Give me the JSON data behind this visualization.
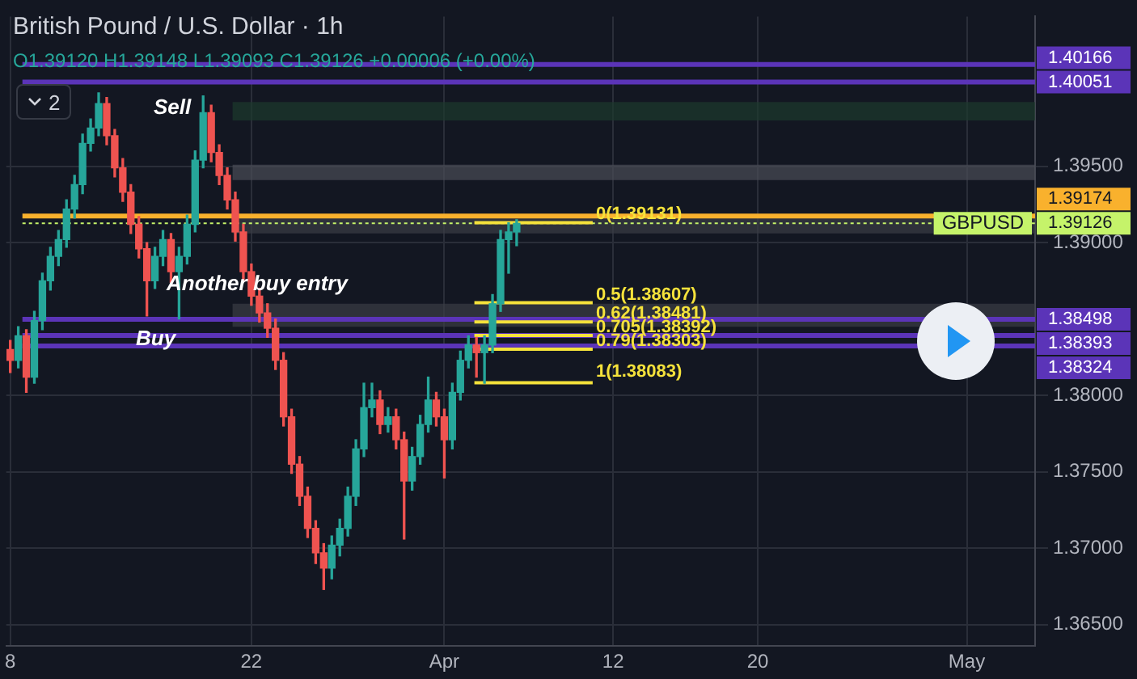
{
  "chart_data": {
    "type": "candlestick",
    "title": "British Pound / U.S. Dollar · 1h",
    "subtitle": "O1.39120 H1.39148 L1.39093 C1.39126 +0.00006 (+0.00%)",
    "categories": [
      "8",
      null,
      null,
      null,
      null,
      null,
      null,
      null,
      null,
      null,
      null,
      null,
      null,
      null,
      null,
      null,
      null,
      null,
      null,
      null,
      null,
      null,
      null,
      null,
      null,
      null,
      null,
      null,
      null,
      null,
      "22",
      null,
      null,
      null,
      null,
      null,
      null,
      null,
      null,
      null,
      null,
      null,
      null,
      null,
      null,
      null,
      null,
      null,
      null,
      null,
      null,
      null,
      null,
      null,
      "Apr",
      null,
      null,
      null,
      null,
      null,
      null,
      null,
      null,
      null,
      null,
      null,
      null,
      null,
      null,
      null,
      null,
      null,
      null,
      null,
      null,
      "12",
      null,
      null,
      null,
      null,
      null,
      null,
      null,
      null,
      null,
      null,
      null,
      null,
      null,
      null,
      null,
      null,
      null,
      "20",
      null,
      null,
      null,
      null,
      null,
      null,
      null,
      null,
      null,
      null,
      null,
      null,
      null,
      null,
      null,
      null,
      null,
      null,
      null,
      null,
      null,
      null,
      null,
      null,
      null,
      "May",
      null,
      null,
      null,
      null,
      null,
      null,
      null,
      null
    ],
    "ohlc": [
      [
        1.383,
        1.3836,
        1.3815,
        1.3823
      ],
      [
        1.3823,
        1.3845,
        1.3818,
        1.3839
      ],
      [
        1.3839,
        1.3843,
        1.3802,
        1.3812
      ],
      [
        1.3812,
        1.3855,
        1.3808,
        1.3849
      ],
      [
        1.3849,
        1.388,
        1.3843,
        1.3875
      ],
      [
        1.3875,
        1.3897,
        1.3869,
        1.3891
      ],
      [
        1.3891,
        1.3908,
        1.3885,
        1.3902
      ],
      [
        1.3902,
        1.3928,
        1.3897,
        1.3922
      ],
      [
        1.3922,
        1.3944,
        1.3916,
        1.3938
      ],
      [
        1.3938,
        1.3971,
        1.3932,
        1.3965
      ],
      [
        1.3965,
        1.3981,
        1.396,
        1.3975
      ],
      [
        1.3975,
        1.3998,
        1.397,
        1.3991
      ],
      [
        1.3991,
        1.3995,
        1.3964,
        1.397
      ],
      [
        1.397,
        1.3974,
        1.3943,
        1.3949
      ],
      [
        1.3949,
        1.3955,
        1.3927,
        1.3933
      ],
      [
        1.3933,
        1.3938,
        1.3906,
        1.3912
      ],
      [
        1.3912,
        1.3917,
        1.389,
        1.3896
      ],
      [
        1.3896,
        1.39,
        1.3852,
        1.3875
      ],
      [
        1.3875,
        1.3897,
        1.387,
        1.3891
      ],
      [
        1.3891,
        1.3908,
        1.3885,
        1.3902
      ],
      [
        1.3902,
        1.3906,
        1.3874,
        1.3881
      ],
      [
        1.3881,
        1.3897,
        1.385,
        1.3891
      ],
      [
        1.3891,
        1.3918,
        1.3886,
        1.3912
      ],
      [
        1.3912,
        1.396,
        1.3907,
        1.3954
      ],
      [
        1.3954,
        1.3996,
        1.3949,
        1.3985
      ],
      [
        1.3985,
        1.399,
        1.3953,
        1.3959
      ],
      [
        1.3959,
        1.3964,
        1.3938,
        1.3944
      ],
      [
        1.3944,
        1.3949,
        1.3922,
        1.3928
      ],
      [
        1.3928,
        1.3933,
        1.3901,
        1.3907
      ],
      [
        1.3907,
        1.3912,
        1.3875,
        1.3881
      ],
      [
        1.3881,
        1.3886,
        1.3859,
        1.3865
      ],
      [
        1.3865,
        1.387,
        1.3848,
        1.3854
      ],
      [
        1.3854,
        1.386,
        1.3838,
        1.3844
      ],
      [
        1.3844,
        1.385,
        1.3817,
        1.3823
      ],
      [
        1.3823,
        1.3828,
        1.378,
        1.3786
      ],
      [
        1.3786,
        1.3791,
        1.3749,
        1.3755
      ],
      [
        1.3755,
        1.376,
        1.3728,
        1.3734
      ],
      [
        1.3734,
        1.374,
        1.3707,
        1.3713
      ],
      [
        1.3713,
        1.3718,
        1.369,
        1.3697
      ],
      [
        1.3697,
        1.3703,
        1.3673,
        1.3687
      ],
      [
        1.3687,
        1.3708,
        1.368,
        1.3702
      ],
      [
        1.3702,
        1.3719,
        1.3695,
        1.3713
      ],
      [
        1.3713,
        1.374,
        1.3708,
        1.3734
      ],
      [
        1.3734,
        1.3771,
        1.3728,
        1.3765
      ],
      [
        1.3765,
        1.3808,
        1.376,
        1.3792
      ],
      [
        1.3792,
        1.3808,
        1.3786,
        1.3797
      ],
      [
        1.3797,
        1.3803,
        1.3775,
        1.3781
      ],
      [
        1.3781,
        1.3792,
        1.3776,
        1.3786
      ],
      [
        1.3786,
        1.3791,
        1.3765,
        1.3771
      ],
      [
        1.3771,
        1.3776,
        1.3706,
        1.3744
      ],
      [
        1.3744,
        1.3766,
        1.3738,
        1.376
      ],
      [
        1.376,
        1.3787,
        1.3755,
        1.3781
      ],
      [
        1.3781,
        1.3812,
        1.3776,
        1.3797
      ],
      [
        1.3797,
        1.3802,
        1.378,
        1.3786
      ],
      [
        1.3786,
        1.3791,
        1.3746,
        1.3771
      ],
      [
        1.3771,
        1.3808,
        1.3765,
        1.3802
      ],
      [
        1.3802,
        1.3829,
        1.3797,
        1.3823
      ],
      [
        1.3823,
        1.3839,
        1.3818,
        1.3833
      ],
      [
        1.3833,
        1.3838,
        1.3812,
        1.3828
      ],
      [
        1.3828,
        1.3839,
        1.3808,
        1.3833
      ],
      [
        1.3833,
        1.3866,
        1.3828,
        1.386
      ],
      [
        1.386,
        1.3908,
        1.3855,
        1.3902
      ],
      [
        1.3902,
        1.3913,
        1.388,
        1.3907
      ],
      [
        1.3907,
        1.3915,
        1.3898,
        1.39126
      ],
      null,
      null,
      null,
      null,
      null,
      null,
      null,
      null,
      null,
      null,
      null,
      null,
      null,
      null,
      null,
      null,
      null,
      null,
      null,
      null,
      null,
      null,
      null,
      null,
      null,
      null,
      null,
      null,
      null,
      null,
      null,
      null,
      null,
      null,
      null,
      null,
      null,
      null,
      null,
      null,
      null,
      null,
      null,
      null,
      null,
      null,
      null,
      null,
      null,
      null,
      null,
      null,
      null,
      null,
      null,
      null,
      null,
      null,
      null,
      null,
      null,
      null,
      null,
      null
    ],
    "colors": [
      "#ef5350",
      "#26a69a",
      "#ef5350",
      "#26a69a",
      "#26a69a",
      "#26a69a",
      "#26a69a",
      "#26a69a",
      "#26a69a",
      "#26a69a",
      "#26a69a",
      "#26a69a",
      "#ef5350",
      "#ef5350",
      "#ef5350",
      "#ef5350",
      "#ef5350",
      "#ef5350",
      "#26a69a",
      "#26a69a",
      "#ef5350",
      "#26a69a",
      "#26a69a",
      "#26a69a",
      "#26a69a",
      "#ef5350",
      "#ef5350",
      "#ef5350",
      "#ef5350",
      "#ef5350",
      "#ef5350",
      "#ef5350",
      "#ef5350",
      "#ef5350",
      "#ef5350",
      "#ef5350",
      "#ef5350",
      "#ef5350",
      "#ef5350",
      "#ef5350",
      "#26a69a",
      "#26a69a",
      "#26a69a",
      "#26a69a",
      "#26a69a",
      "#26a69a",
      "#ef5350",
      "#26a69a",
      "#ef5350",
      "#ef5350",
      "#26a69a",
      "#26a69a",
      "#26a69a",
      "#ef5350",
      "#ef5350",
      "#26a69a",
      "#26a69a",
      "#26a69a",
      "#ef5350",
      "#26a69a",
      "#26a69a",
      "#26a69a",
      "#26a69a",
      "#26a69a",
      null,
      null,
      null,
      null,
      null,
      null,
      null,
      null,
      null,
      null,
      null,
      null,
      null,
      null,
      null,
      null,
      null,
      null,
      null,
      null,
      null,
      null,
      null,
      null,
      null,
      null,
      null,
      null,
      null,
      null,
      null,
      null,
      null,
      null,
      null,
      null,
      null,
      null,
      null,
      null,
      null,
      null,
      null,
      null,
      null,
      null,
      null,
      null,
      null,
      null,
      null,
      null,
      null,
      null,
      null,
      null,
      null,
      null,
      null,
      null,
      null,
      null,
      null,
      null
    ],
    "ylim": [
      1.3636,
      1.4048
    ],
    "yticks": [
      {
        "value": 1.365,
        "label": "1.36500"
      },
      {
        "value": 1.37,
        "label": "1.37000"
      },
      {
        "value": 1.375,
        "label": "1.37500"
      },
      {
        "value": 1.38,
        "label": "1.38000"
      },
      {
        "value": 1.39,
        "label": "1.39000"
      },
      {
        "value": 1.395,
        "label": "1.39500"
      }
    ],
    "grid": true,
    "bands": [
      {
        "axis": "y",
        "from": 1.398,
        "to": 1.3992,
        "color": "#1c3a2c"
      },
      {
        "axis": "y",
        "from": 1.3941,
        "to": 1.3951,
        "color": "#4a4d55"
      },
      {
        "axis": "y",
        "from": 1.3906,
        "to": 1.3917,
        "color": "#3a3d45"
      },
      {
        "axis": "y",
        "from": 1.3845,
        "to": 1.386,
        "color": "#3a3d45"
      }
    ],
    "ref_lines": [
      {
        "axis": "y",
        "value": 1.40166,
        "label": "1.40166",
        "color": "#5b34b8"
      },
      {
        "axis": "y",
        "value": 1.40051,
        "label": "1.40051",
        "color": "#5b34b8"
      },
      {
        "axis": "y",
        "value": 1.39174,
        "label": "1.39174",
        "color": "#f9b12d"
      },
      {
        "axis": "y",
        "value": 1.39126,
        "label": "1.39126",
        "color": "#c5f36a",
        "line_style": "dotted"
      },
      {
        "axis": "y",
        "value": 1.38498,
        "label": "1.38498",
        "color": "#5b34b8"
      },
      {
        "axis": "y",
        "value": 1.38393,
        "label": "1.38393",
        "color": "#5b34b8"
      },
      {
        "axis": "y",
        "value": 1.38324,
        "label": "1.38324",
        "color": "#5b34b8"
      },
      {
        "axis": "y",
        "value": 1.39131,
        "color": "#f5e23b"
      },
      {
        "axis": "y",
        "value": 1.38607,
        "color": "#f5e23b"
      },
      {
        "axis": "y",
        "value": 1.38481,
        "color": "#f5e23b"
      },
      {
        "axis": "y",
        "value": 1.38392,
        "color": "#f5e23b"
      },
      {
        "axis": "y",
        "value": 1.38303,
        "color": "#f5e23b"
      },
      {
        "axis": "y",
        "value": 1.38083,
        "color": "#f5e23b"
      }
    ],
    "annotations": [
      "2",
      "Sell",
      "Another buy entry",
      "Buy",
      "GBPUSD",
      "1(1.38083)",
      {
        "text": "0(1.39131)",
        "y": 1.39131
      },
      {
        "text": "0.5(1.38607)",
        "y": 1.38607
      },
      {
        "text": "0.62(1.38481)",
        "y": 1.38481
      },
      {
        "text": "0.705(1.38392)",
        "y": 1.38392
      },
      {
        "text": "0.79(1.38303)",
        "y": 1.38303
      }
    ]
  }
}
